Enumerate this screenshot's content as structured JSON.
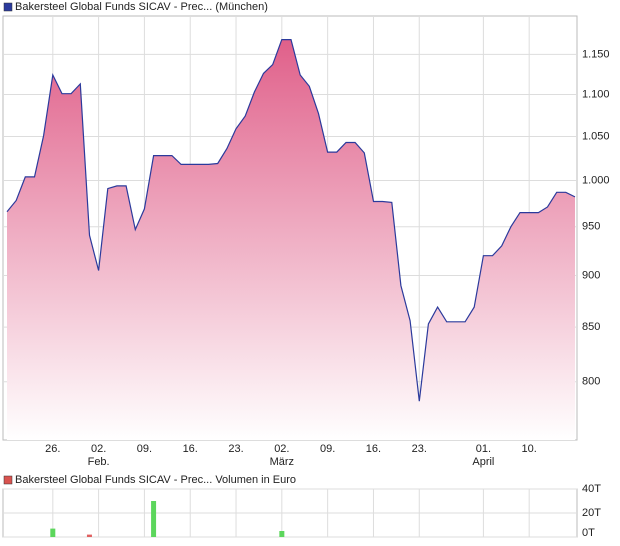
{
  "chart_data": [
    {
      "type": "area",
      "title": "Bakersteel Global Funds SICAV - Prec... (München)",
      "log_scale": true,
      "grid": true,
      "categories": [
        null,
        null,
        null,
        null,
        null,
        "26.",
        null,
        null,
        null,
        null,
        "02.",
        null,
        null,
        null,
        null,
        "09.",
        null,
        null,
        null,
        null,
        "16.",
        null,
        null,
        null,
        null,
        "23.",
        null,
        null,
        null,
        null,
        "02.",
        null,
        null,
        null,
        null,
        "09.",
        null,
        null,
        null,
        null,
        "16.",
        null,
        null,
        null,
        null,
        "23.",
        null,
        null,
        null,
        null,
        null,
        null,
        "01.",
        null,
        null,
        null,
        null,
        "10.",
        null,
        null,
        null,
        null,
        null
      ],
      "months": [
        null,
        null,
        null,
        null,
        null,
        null,
        null,
        null,
        null,
        null,
        "Feb.",
        null,
        null,
        null,
        null,
        null,
        null,
        null,
        null,
        null,
        null,
        null,
        null,
        null,
        null,
        null,
        null,
        null,
        null,
        null,
        "März",
        null,
        null,
        null,
        null,
        null,
        null,
        null,
        null,
        null,
        null,
        null,
        null,
        null,
        null,
        null,
        null,
        null,
        null,
        null,
        null,
        null,
        "April",
        null,
        null,
        null,
        null,
        null,
        null,
        null,
        null,
        null,
        null
      ],
      "series": [
        {
          "color": "#2b3a9c",
          "fill": "#e0608a",
          "values": [
            966,
            978,
            1004,
            1004,
            1051,
            1124,
            1101,
            1101,
            1113,
            941,
            905,
            991,
            994,
            994,
            947,
            969,
            1028,
            1028,
            1028,
            1018,
            1018,
            1018,
            1018,
            1019,
            1036,
            1059,
            1074,
            1103,
            1126,
            1137,
            1169,
            1169,
            1124,
            1110,
            1077,
            1032,
            1032,
            1043,
            1043,
            1031,
            977,
            977,
            976,
            890,
            856,
            783,
            853,
            869,
            855,
            855,
            855,
            869,
            920,
            920,
            930,
            950,
            965,
            965,
            965,
            971,
            987,
            987,
            982
          ]
        }
      ],
      "ylim": [
        750,
        1200
      ],
      "yticks": [
        800,
        850,
        900,
        950,
        {
          "value": 1000,
          "label": "1.000"
        },
        {
          "value": 1050,
          "label": "1.050"
        },
        {
          "value": 1100,
          "label": "1.100"
        },
        {
          "value": 1150,
          "label": "1.150"
        }
      ]
    },
    {
      "type": "bar",
      "title": "Bakersteel Global Funds SICAV - Prec... Volumen in Euro",
      "color": "#d9534f",
      "up_color": "#5cd65c",
      "down_color": "#e06060",
      "grid": true,
      "values": [
        null,
        null,
        null,
        null,
        null,
        7000,
        null,
        null,
        null,
        2000,
        null,
        null,
        null,
        null,
        null,
        null,
        30000,
        null,
        null,
        null,
        null,
        null,
        null,
        null,
        null,
        null,
        null,
        null,
        null,
        null,
        5000,
        null,
        null,
        null,
        null,
        null,
        null,
        null,
        null,
        null,
        null,
        null,
        null,
        null,
        null,
        null,
        null,
        null,
        null,
        null,
        null,
        null,
        null,
        null,
        null,
        null,
        null,
        null,
        null,
        null,
        null,
        null,
        null
      ],
      "ylim": [
        0,
        40000
      ],
      "yticks": [
        {
          "value": 0,
          "label": "0T"
        },
        {
          "value": 20000,
          "label": "20T"
        },
        {
          "value": 40000,
          "label": "40T"
        }
      ]
    }
  ]
}
